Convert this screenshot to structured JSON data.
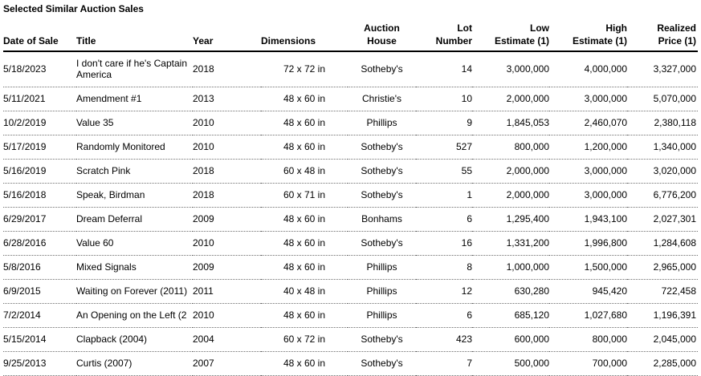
{
  "page_title": "Selected Similar Auction Sales",
  "table": {
    "columns": [
      {
        "key": "date",
        "lines": [
          "Date of Sale"
        ]
      },
      {
        "key": "title",
        "lines": [
          "Title"
        ]
      },
      {
        "key": "year",
        "lines": [
          "Year"
        ]
      },
      {
        "key": "dimensions",
        "lines": [
          "Dimensions"
        ]
      },
      {
        "key": "auction_house",
        "lines": [
          "Auction",
          "House"
        ]
      },
      {
        "key": "lot_number",
        "lines": [
          "Lot",
          "Number"
        ]
      },
      {
        "key": "low_estimate",
        "lines": [
          "Low",
          "Estimate (1)"
        ]
      },
      {
        "key": "high_estimate",
        "lines": [
          "High",
          "Estimate (1)"
        ]
      },
      {
        "key": "realized_price",
        "lines": [
          "Realized",
          "Price (1)"
        ]
      }
    ],
    "rows": [
      {
        "date": "5/18/2023",
        "title": "I don't care if he's Captain America",
        "year": "2018",
        "dimensions": "72 x 72 in",
        "auction_house": "Sotheby's",
        "lot_number": "14",
        "low_estimate": "3,000,000",
        "high_estimate": "4,000,000",
        "realized_price": "3,327,000"
      },
      {
        "date": "5/11/2021",
        "title": "Amendment #1",
        "year": "2013",
        "dimensions": "48 x 60 in",
        "auction_house": "Christie's",
        "lot_number": "10",
        "low_estimate": "2,000,000",
        "high_estimate": "3,000,000",
        "realized_price": "5,070,000"
      },
      {
        "date": "10/2/2019",
        "title": "Value 35",
        "year": "2010",
        "dimensions": "48 x 60 in",
        "auction_house": "Phillips",
        "lot_number": "9",
        "low_estimate": "1,845,053",
        "high_estimate": "2,460,070",
        "realized_price": "2,380,118"
      },
      {
        "date": "5/17/2019",
        "title": "Randomly Monitored",
        "year": "2010",
        "dimensions": "48 x 60 in",
        "auction_house": "Sotheby's",
        "lot_number": "527",
        "low_estimate": "800,000",
        "high_estimate": "1,200,000",
        "realized_price": "1,340,000"
      },
      {
        "date": "5/16/2019",
        "title": "Scratch Pink",
        "year": "2018",
        "dimensions": "60 x 48 in",
        "auction_house": "Sotheby's",
        "lot_number": "55",
        "low_estimate": "2,000,000",
        "high_estimate": "3,000,000",
        "realized_price": "3,020,000"
      },
      {
        "date": "5/16/2018",
        "title": "Speak, Birdman",
        "year": "2018",
        "dimensions": "60 x 71 in",
        "auction_house": "Sotheby's",
        "lot_number": "1",
        "low_estimate": "2,000,000",
        "high_estimate": "3,000,000",
        "realized_price": "6,776,200"
      },
      {
        "date": "6/29/2017",
        "title": "Dream Deferral",
        "year": "2009",
        "dimensions": "48 x 60 in",
        "auction_house": "Bonhams",
        "lot_number": "6",
        "low_estimate": "1,295,400",
        "high_estimate": "1,943,100",
        "realized_price": "2,027,301"
      },
      {
        "date": "6/28/2016",
        "title": "Value 60",
        "year": "2010",
        "dimensions": "48 x 60 in",
        "auction_house": "Sotheby's",
        "lot_number": "16",
        "low_estimate": "1,331,200",
        "high_estimate": "1,996,800",
        "realized_price": "1,284,608"
      },
      {
        "date": "5/8/2016",
        "title": "Mixed Signals",
        "year": "2009",
        "dimensions": "48 x 60 in",
        "auction_house": "Phillips",
        "lot_number": "8",
        "low_estimate": "1,000,000",
        "high_estimate": "1,500,000",
        "realized_price": "2,965,000"
      },
      {
        "date": "6/9/2015",
        "title": "Waiting on Forever (2011)",
        "year": "2011",
        "dimensions": "40 x 48 in",
        "auction_house": "Phillips",
        "lot_number": "12",
        "low_estimate": "630,280",
        "high_estimate": "945,420",
        "realized_price": "722,458"
      },
      {
        "date": "7/2/2014",
        "title": "An Opening on the Left (2",
        "year": "2010",
        "dimensions": "48 x 60 in",
        "auction_house": "Phillips",
        "lot_number": "6",
        "low_estimate": "685,120",
        "high_estimate": "1,027,680",
        "realized_price": "1,196,391"
      },
      {
        "date": "5/15/2014",
        "title": "Clapback (2004)",
        "year": "2004",
        "dimensions": "60 x 72 in",
        "auction_house": "Sotheby's",
        "lot_number": "423",
        "low_estimate": "600,000",
        "high_estimate": "800,000",
        "realized_price": "2,045,000"
      },
      {
        "date": "9/25/2013",
        "title": "Curtis (2007)",
        "year": "2007",
        "dimensions": "48 x 60 in",
        "auction_house": "Sotheby's",
        "lot_number": "7",
        "low_estimate": "500,000",
        "high_estimate": "700,000",
        "realized_price": "2,285,000"
      }
    ]
  }
}
